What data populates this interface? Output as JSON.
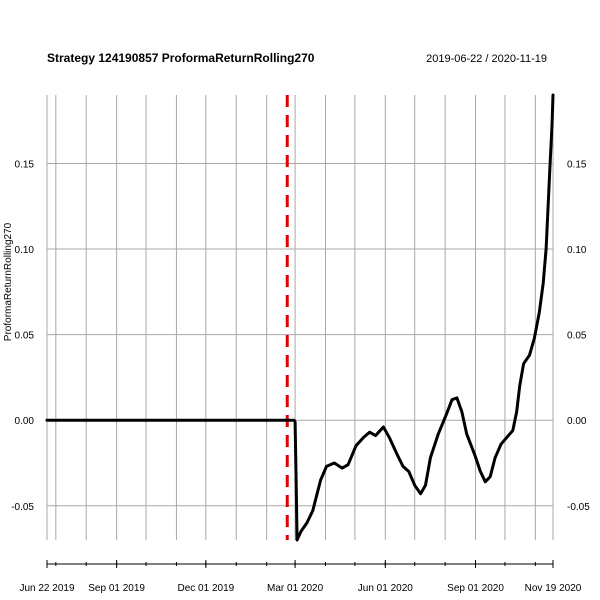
{
  "chart_data": {
    "type": "line",
    "title": "Strategy 124190857 ProformaReturnRolling270",
    "date_range": "2019-06-22 / 2020-11-19",
    "ylabel": "ProformaReturnRolling270",
    "xlabel": "",
    "x_ticks": [
      {
        "date": "2019-06-22",
        "label": "Jun 22 2019"
      },
      {
        "date": "2019-09-01",
        "label": "Sep 01 2019"
      },
      {
        "date": "2019-12-01",
        "label": "Dec 01 2019"
      },
      {
        "date": "2020-03-01",
        "label": "Mar 01 2020"
      },
      {
        "date": "2020-06-01",
        "label": "Jun 01 2020"
      },
      {
        "date": "2020-09-01",
        "label": "Sep 01 2020"
      },
      {
        "date": "2020-11-19",
        "label": "Nov 19 2020"
      }
    ],
    "y_ticks": [
      {
        "value": -0.05,
        "label": "-0.05"
      },
      {
        "value": 0.0,
        "label": "0.00"
      },
      {
        "value": 0.05,
        "label": "0.05"
      },
      {
        "value": 0.1,
        "label": "0.10"
      },
      {
        "value": 0.15,
        "label": "0.15"
      }
    ],
    "xlim": [
      "2019-06-22",
      "2020-11-19"
    ],
    "ylim": [
      -0.07,
      0.19
    ],
    "grid": true,
    "vline": {
      "date": "2020-02-22",
      "color": "#e00000",
      "style": "dashed"
    },
    "series": [
      {
        "color": "#000000",
        "points": [
          [
            "2019-06-22",
            0.0
          ],
          [
            "2020-01-01",
            0.0
          ],
          [
            "2020-02-29",
            0.0
          ],
          [
            "2020-03-01",
            -0.001
          ],
          [
            "2020-03-02",
            -0.035
          ],
          [
            "2020-03-03",
            -0.07
          ],
          [
            "2020-03-07",
            -0.065
          ],
          [
            "2020-03-13",
            -0.06
          ],
          [
            "2020-03-19",
            -0.053
          ],
          [
            "2020-03-27",
            -0.035
          ],
          [
            "2020-04-02",
            -0.027
          ],
          [
            "2020-04-10",
            -0.025
          ],
          [
            "2020-04-18",
            -0.028
          ],
          [
            "2020-04-24",
            -0.026
          ],
          [
            "2020-05-02",
            -0.015
          ],
          [
            "2020-05-10",
            -0.01
          ],
          [
            "2020-05-16",
            -0.007
          ],
          [
            "2020-05-22",
            -0.009
          ],
          [
            "2020-05-30",
            -0.004
          ],
          [
            "2020-06-05",
            -0.01
          ],
          [
            "2020-06-13",
            -0.02
          ],
          [
            "2020-06-19",
            -0.027
          ],
          [
            "2020-06-25",
            -0.03
          ],
          [
            "2020-07-01",
            -0.038
          ],
          [
            "2020-07-07",
            -0.043
          ],
          [
            "2020-07-12",
            -0.038
          ],
          [
            "2020-07-17",
            -0.022
          ],
          [
            "2020-07-25",
            -0.008
          ],
          [
            "2020-08-02",
            0.003
          ],
          [
            "2020-08-08",
            0.012
          ],
          [
            "2020-08-13",
            0.013
          ],
          [
            "2020-08-18",
            0.005
          ],
          [
            "2020-08-23",
            -0.008
          ],
          [
            "2020-08-31",
            -0.02
          ],
          [
            "2020-09-06",
            -0.03
          ],
          [
            "2020-09-11",
            -0.036
          ],
          [
            "2020-09-16",
            -0.033
          ],
          [
            "2020-09-21",
            -0.022
          ],
          [
            "2020-09-27",
            -0.014
          ],
          [
            "2020-10-03",
            -0.01
          ],
          [
            "2020-10-09",
            -0.006
          ],
          [
            "2020-10-13",
            0.005
          ],
          [
            "2020-10-16",
            0.02
          ],
          [
            "2020-10-20",
            0.033
          ],
          [
            "2020-10-26",
            0.038
          ],
          [
            "2020-10-31",
            0.048
          ],
          [
            "2020-11-05",
            0.063
          ],
          [
            "2020-11-09",
            0.08
          ],
          [
            "2020-11-12",
            0.1
          ],
          [
            "2020-11-14",
            0.125
          ],
          [
            "2020-11-16",
            0.15
          ],
          [
            "2020-11-18",
            0.172
          ],
          [
            "2020-11-19",
            0.19
          ]
        ]
      }
    ]
  }
}
